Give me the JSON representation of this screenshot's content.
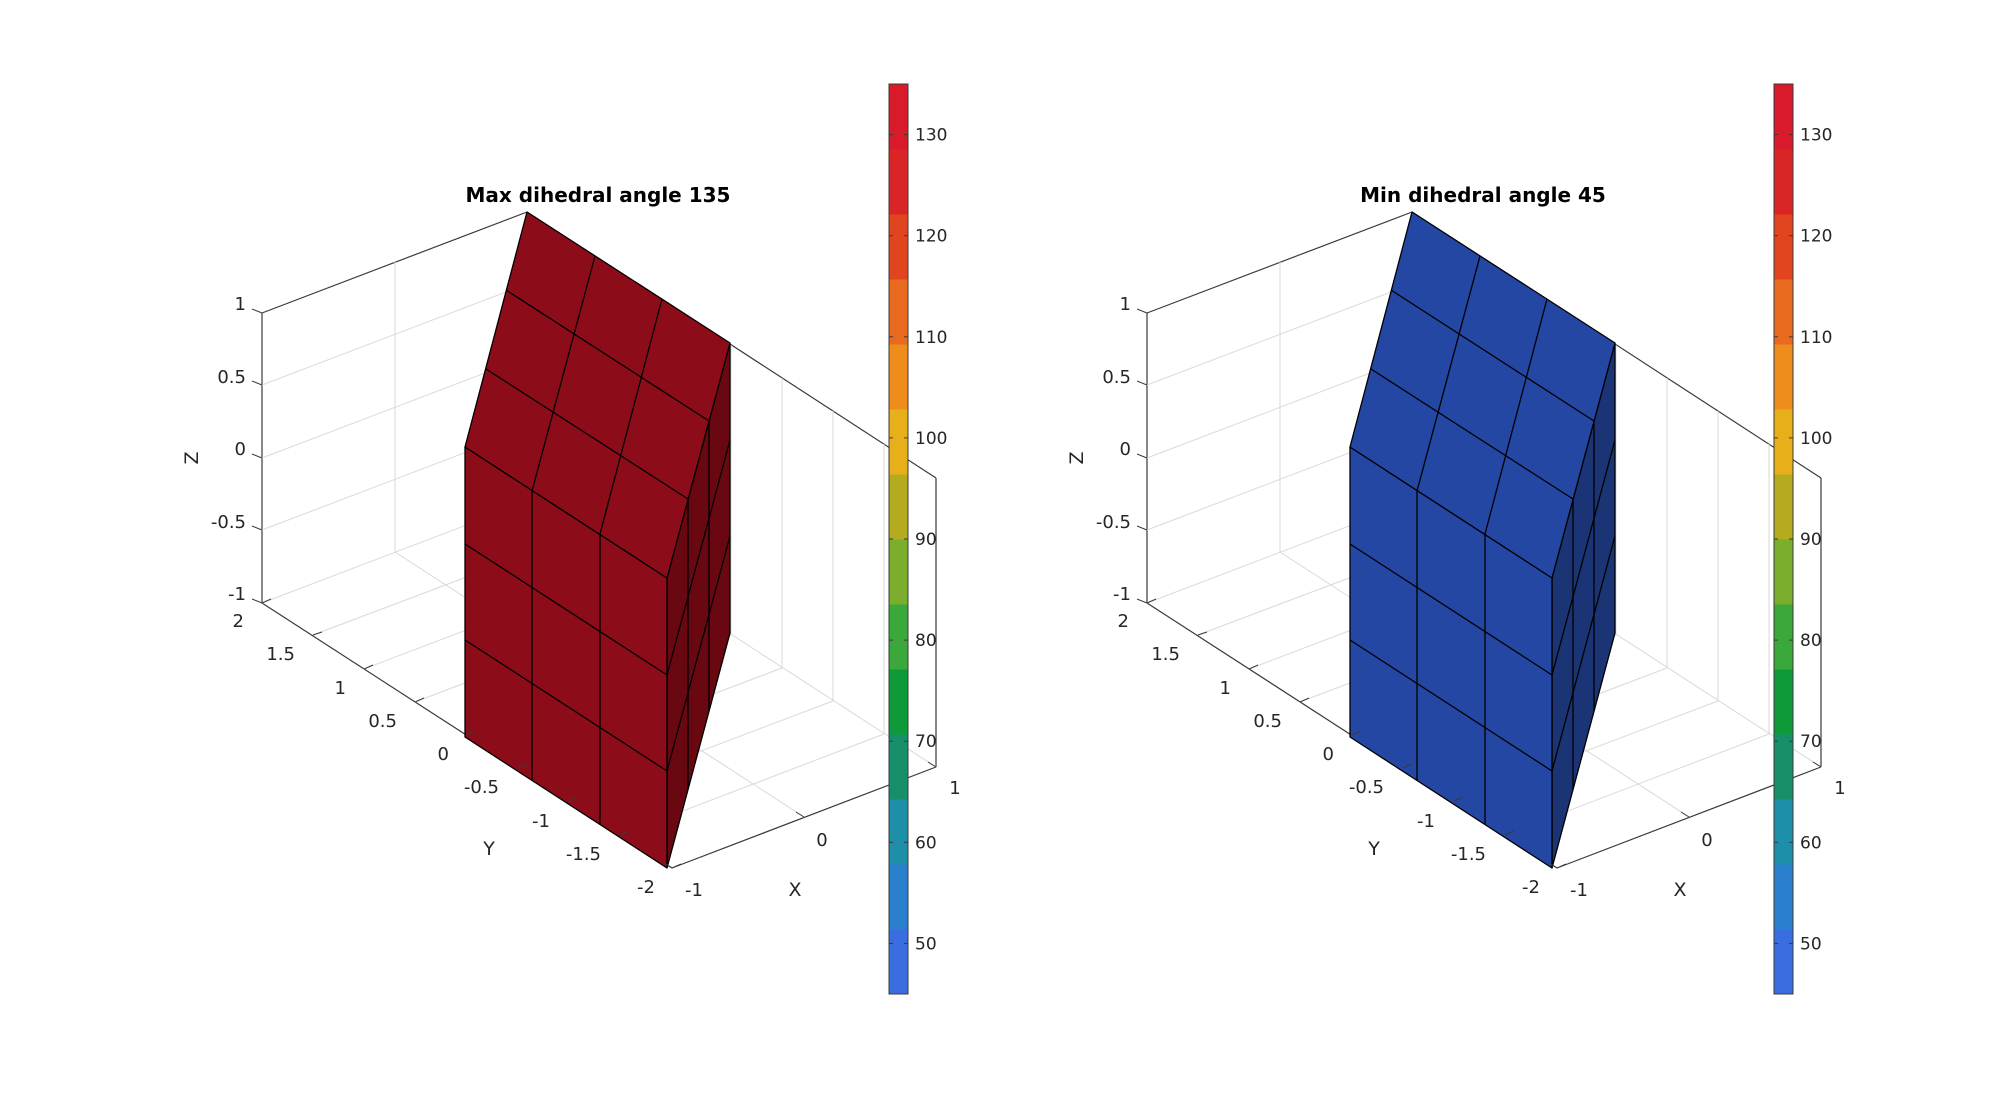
{
  "chart_data": [
    {
      "type": "3d-surface",
      "title": "Max dihedral angle 135",
      "xlabel": "X",
      "ylabel": "Y",
      "zlabel": "Z",
      "xlim": [
        -1,
        1
      ],
      "ylim": [
        -2,
        2
      ],
      "zlim": [
        -1,
        1
      ],
      "xticks": [
        "-1",
        "0",
        "1"
      ],
      "yticks": [
        "-2",
        "-1.5",
        "-1",
        "-0.5",
        "0",
        "0.5",
        "1",
        "1.5",
        "2"
      ],
      "zticks": [
        "-1",
        "-0.5",
        "0",
        "0.5",
        "1"
      ],
      "face_color": "#8d0c1a",
      "side_color": "#6a0812",
      "edge_color": "#000000",
      "face_value": 135,
      "colorbar": {
        "limits": [
          45,
          135
        ],
        "ticks": [
          "50",
          "60",
          "70",
          "80",
          "90",
          "100",
          "110",
          "120",
          "130"
        ]
      }
    },
    {
      "type": "3d-surface",
      "title": "Min dihedral angle 45",
      "xlabel": "X",
      "ylabel": "Y",
      "zlabel": "Z",
      "xlim": [
        -1,
        1
      ],
      "ylim": [
        -2,
        2
      ],
      "zlim": [
        -1,
        1
      ],
      "xticks": [
        "-1",
        "0",
        "1"
      ],
      "yticks": [
        "-2",
        "-1.5",
        "-1",
        "-0.5",
        "0",
        "0.5",
        "1",
        "1.5",
        "2"
      ],
      "zticks": [
        "-1",
        "-0.5",
        "0",
        "0.5",
        "1"
      ],
      "face_color": "#2447a3",
      "side_color": "#1a3475",
      "edge_color": "#000000",
      "face_value": 45,
      "colorbar": {
        "limits": [
          45,
          135
        ],
        "ticks": [
          "50",
          "60",
          "70",
          "80",
          "90",
          "100",
          "110",
          "120",
          "130"
        ]
      }
    }
  ],
  "colormap": [
    "#3a6ee0",
    "#2a80cc",
    "#1e8fa8",
    "#168f6a",
    "#0f9a3a",
    "#3aa83a",
    "#7aae2c",
    "#b4ac1e",
    "#e7b01a",
    "#ee8c1c",
    "#e86a1e",
    "#e0451f",
    "#d92525",
    "#d81a2a"
  ]
}
